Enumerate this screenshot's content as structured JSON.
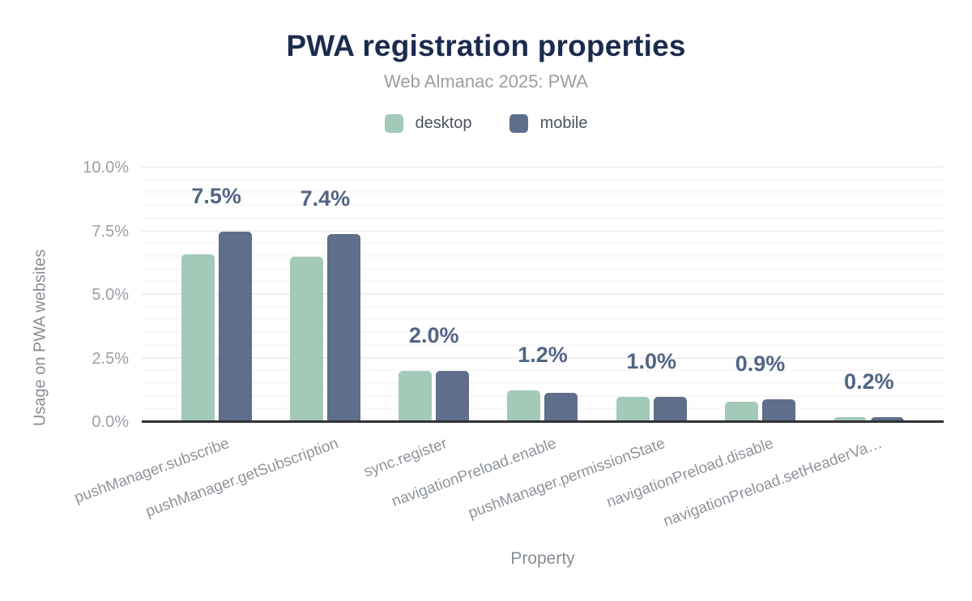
{
  "chart_data": {
    "type": "bar",
    "title": "PWA registration properties",
    "subtitle": "Web Almanac 2025: PWA",
    "xlabel": "Property",
    "ylabel": "Usage on PWA websites",
    "ylim": [
      0,
      10
    ],
    "ytick_step_major": 2.5,
    "ytick_step_minor": 0.5,
    "yticks": [
      "0.0%",
      "2.5%",
      "5.0%",
      "7.5%",
      "10.0%"
    ],
    "grid": "horizontal",
    "legend_position": "top",
    "categories": [
      "pushManager.subscribe",
      "pushManager.getSubscription",
      "sync.register",
      "navigationPreload.enable",
      "pushManager.permissionState",
      "navigationPreload.disable",
      "navigationPreload.setHeaderVa…"
    ],
    "series": [
      {
        "name": "desktop",
        "color": "#a3c9b8",
        "values": [
          6.6,
          6.5,
          2.0,
          1.25,
          1.0,
          0.8,
          0.2
        ]
      },
      {
        "name": "mobile",
        "color": "#5f6e8a",
        "values": [
          7.5,
          7.4,
          2.0,
          1.15,
          1.0,
          0.9,
          0.2
        ]
      }
    ],
    "bar_labels": [
      "7.5%",
      "7.4%",
      "2.0%",
      "1.2%",
      "1.0%",
      "0.9%",
      "0.2%"
    ]
  },
  "colors": {
    "title": "#1b2b4e",
    "subtitle": "#9b9ea3",
    "legend_text": "#4d535b",
    "bar_label": "#526584",
    "tick": "#9aa0a6",
    "xtick": "#8f959b",
    "axis_title": "#878d94",
    "axis_line": "#303236",
    "grid_minor": "#f7f7f8",
    "grid_major": "#efeff1",
    "desktop": "#a3c9b8",
    "mobile": "#5f6e8a"
  }
}
